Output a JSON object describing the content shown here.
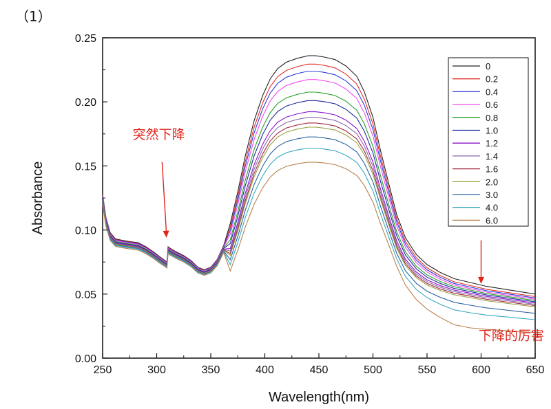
{
  "figure_label": "（1）",
  "chart_data": {
    "type": "line",
    "xlabel": "Wavelength(nm)",
    "ylabel": "Absorbance",
    "xlim": [
      250,
      650
    ],
    "ylim": [
      0.0,
      0.25
    ],
    "xticks": [
      "250",
      "300",
      "350",
      "400",
      "450",
      "500",
      "550",
      "600",
      "650"
    ],
    "yticks": [
      "0.00",
      "0.05",
      "0.10",
      "0.15",
      "0.20",
      "0.25"
    ],
    "legend_position": "top-right",
    "grid": false,
    "series": [
      {
        "name": "0",
        "color": "#222222",
        "peak": 0.236,
        "tail": 0.05
      },
      {
        "name": "0.2",
        "color": "#e0302a",
        "peak": 0.23,
        "tail": 0.048
      },
      {
        "name": "0.4",
        "color": "#2f3ad8",
        "peak": 0.225,
        "tail": 0.047
      },
      {
        "name": "0.6",
        "color": "#f04cf0",
        "peak": 0.219,
        "tail": 0.046
      },
      {
        "name": "0.8",
        "color": "#28a028",
        "peak": 0.21,
        "tail": 0.045
      },
      {
        "name": "1.0",
        "color": "#1e2a9a",
        "peak": 0.204,
        "tail": 0.044
      },
      {
        "name": "1.2",
        "color": "#8a10c8",
        "peak": 0.196,
        "tail": 0.043
      },
      {
        "name": "1.4",
        "color": "#8a6aa8",
        "peak": 0.192,
        "tail": 0.042
      },
      {
        "name": "1.6",
        "color": "#a02840",
        "peak": 0.188,
        "tail": 0.041
      },
      {
        "name": "2.0",
        "color": "#9aa040",
        "peak": 0.185,
        "tail": 0.04
      },
      {
        "name": "3.0",
        "color": "#2860a0",
        "peak": 0.178,
        "tail": 0.035
      },
      {
        "name": "4.0",
        "color": "#38a8c0",
        "peak": 0.17,
        "tail": 0.03
      },
      {
        "name": "6.0",
        "color": "#b8804a",
        "peak": 0.16,
        "tail": 0.02
      }
    ],
    "annotations": [
      {
        "text": "突然下降",
        "x": 300,
        "y": 0.175
      },
      {
        "text": "下降的厉害",
        "x": 620,
        "y": 0.018
      }
    ],
    "arrows": [
      {
        "from": [
          305,
          0.153
        ],
        "to": [
          309,
          0.094
        ]
      },
      {
        "from": [
          600,
          0.092
        ],
        "to": [
          600,
          0.058
        ]
      }
    ]
  }
}
